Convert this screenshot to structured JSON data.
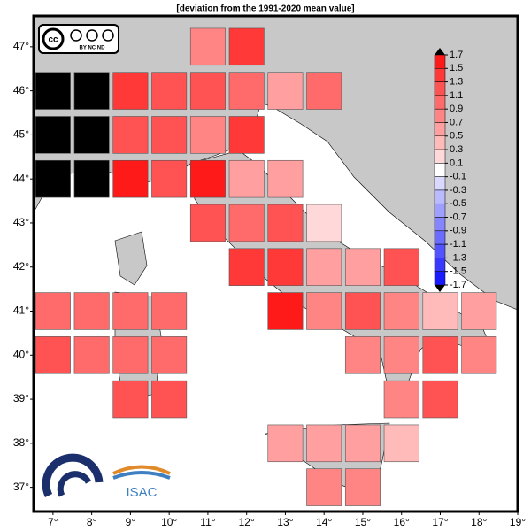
{
  "chart_data": {
    "type": "gridmap",
    "title": "[deviation from the 1991-2020 mean value]",
    "xlim": [
      6.5,
      19
    ],
    "ylim": [
      36.45,
      47.7
    ],
    "xticks": [
      {
        "value": 7,
        "label": "7°"
      },
      {
        "value": 8,
        "label": "8°"
      },
      {
        "value": 9,
        "label": "9°"
      },
      {
        "value": 10,
        "label": "10°"
      },
      {
        "value": 11,
        "label": "11°"
      },
      {
        "value": 12,
        "label": "12°"
      },
      {
        "value": 13,
        "label": "13°"
      },
      {
        "value": 14,
        "label": "14°"
      },
      {
        "value": 15,
        "label": "15°"
      },
      {
        "value": 16,
        "label": "16°"
      },
      {
        "value": 17,
        "label": "17°"
      },
      {
        "value": 18,
        "label": "18°"
      },
      {
        "value": 19,
        "label": "19°"
      }
    ],
    "yticks": [
      {
        "value": 47,
        "label": "47°"
      },
      {
        "value": 46,
        "label": "46°"
      },
      {
        "value": 45,
        "label": "45°"
      },
      {
        "value": 44,
        "label": "44°"
      },
      {
        "value": 43,
        "label": "43°"
      },
      {
        "value": 42,
        "label": "42°"
      },
      {
        "value": 41,
        "label": "41°"
      },
      {
        "value": 40,
        "label": "40°"
      },
      {
        "value": 39,
        "label": "39°"
      },
      {
        "value": 38,
        "label": "38°"
      },
      {
        "value": 37,
        "label": "37°"
      }
    ],
    "colorbar_levels": [
      1.7,
      1.5,
      1.3,
      1.1,
      0.9,
      0.7,
      0.5,
      0.3,
      0.1,
      -0.1,
      -0.3,
      -0.5,
      -0.7,
      -0.9,
      -1.1,
      -1.3,
      -1.5,
      -1.7
    ],
    "colorbar_colors": [
      "#ff1a1a",
      "#ff3838",
      "#ff5252",
      "#ff6b6b",
      "#ff8585",
      "#ff9f9f",
      "#ffbaba",
      "#ffd9d9",
      "#ffffff",
      "#d9d9ff",
      "#babaff",
      "#9f9fff",
      "#8585ff",
      "#6b6bff",
      "#5252ff",
      "#3838ff",
      "#1a1aff"
    ],
    "nodata_color": "#000000",
    "cells": {
      "lon": [
        11,
        12,
        7,
        8,
        9,
        10,
        11,
        12,
        13,
        14,
        7,
        8,
        9,
        10,
        11,
        12,
        7,
        8,
        9,
        10,
        11,
        12,
        13,
        11,
        12,
        13,
        14,
        12,
        13,
        14,
        15,
        16,
        7,
        8,
        9,
        10,
        13,
        14,
        15,
        16,
        17,
        18,
        7,
        8,
        9,
        10,
        15,
        16,
        17,
        18,
        9,
        10,
        16,
        17,
        13,
        14,
        15,
        16,
        14,
        15
      ],
      "lat": [
        47,
        47,
        46,
        46,
        46,
        46,
        46,
        46,
        46,
        46,
        45,
        45,
        45,
        45,
        45,
        45,
        44,
        44,
        44,
        44,
        44,
        44,
        44,
        43,
        43,
        43,
        43,
        42,
        42,
        42,
        42,
        42,
        41,
        41,
        41,
        41,
        41,
        41,
        41,
        41,
        41,
        41,
        40,
        40,
        40,
        40,
        40,
        40,
        40,
        40,
        39,
        39,
        39,
        39,
        38,
        38,
        38,
        38,
        37,
        37
      ],
      "values": [
        0.8,
        1.4,
        null,
        null,
        1.4,
        1.2,
        1.2,
        1.0,
        0.6,
        1.0,
        null,
        null,
        1.2,
        1.2,
        0.8,
        1.4,
        null,
        null,
        1.6,
        1.2,
        1.6,
        0.6,
        0.6,
        1.2,
        1.0,
        1.2,
        0.2,
        1.4,
        1.4,
        0.6,
        0.6,
        1.2,
        1.0,
        1.0,
        1.0,
        1.0,
        1.6,
        0.8,
        1.2,
        0.8,
        0.4,
        0.6,
        1.2,
        1.0,
        1.0,
        1.0,
        0.8,
        0.8,
        1.2,
        0.8,
        1.2,
        1.2,
        0.8,
        1.2,
        0.6,
        0.6,
        0.6,
        0.4,
        0.8,
        0.8
      ]
    }
  },
  "logos": {
    "cc": "cc",
    "cc_terms": "BY  NC  ND",
    "institute": "ISAC"
  }
}
